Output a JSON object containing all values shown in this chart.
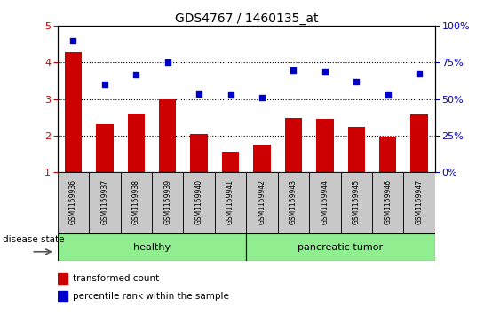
{
  "title": "GDS4767 / 1460135_at",
  "samples": [
    "GSM1159936",
    "GSM1159937",
    "GSM1159938",
    "GSM1159939",
    "GSM1159940",
    "GSM1159941",
    "GSM1159942",
    "GSM1159943",
    "GSM1159944",
    "GSM1159945",
    "GSM1159946",
    "GSM1159947"
  ],
  "bar_values": [
    4.28,
    2.32,
    2.6,
    3.0,
    2.05,
    1.56,
    1.75,
    2.48,
    2.45,
    2.25,
    1.98,
    2.57
  ],
  "scatter_values": [
    4.6,
    3.4,
    3.68,
    4.0,
    3.13,
    3.1,
    3.03,
    3.78,
    3.73,
    3.48,
    3.1,
    3.7
  ],
  "bar_color": "#cc0000",
  "scatter_color": "#0000cc",
  "ylim_left": [
    1,
    5
  ],
  "ylim_right": [
    0,
    100
  ],
  "yticks_left": [
    1,
    2,
    3,
    4,
    5
  ],
  "yticks_right": [
    0,
    25,
    50,
    75,
    100
  ],
  "group_labels": [
    "healthy",
    "pancreatic tumor"
  ],
  "group_colors": [
    "#90ee90",
    "#90ee90"
  ],
  "disease_state_label": "disease state",
  "legend_entries": [
    "transformed count",
    "percentile rank within the sample"
  ],
  "tick_label_color_left": "#cc0000",
  "tick_label_color_right": "#0000cc",
  "tick_box_color": "#c8c8c8",
  "healthy_count": 6,
  "tumor_count": 6
}
